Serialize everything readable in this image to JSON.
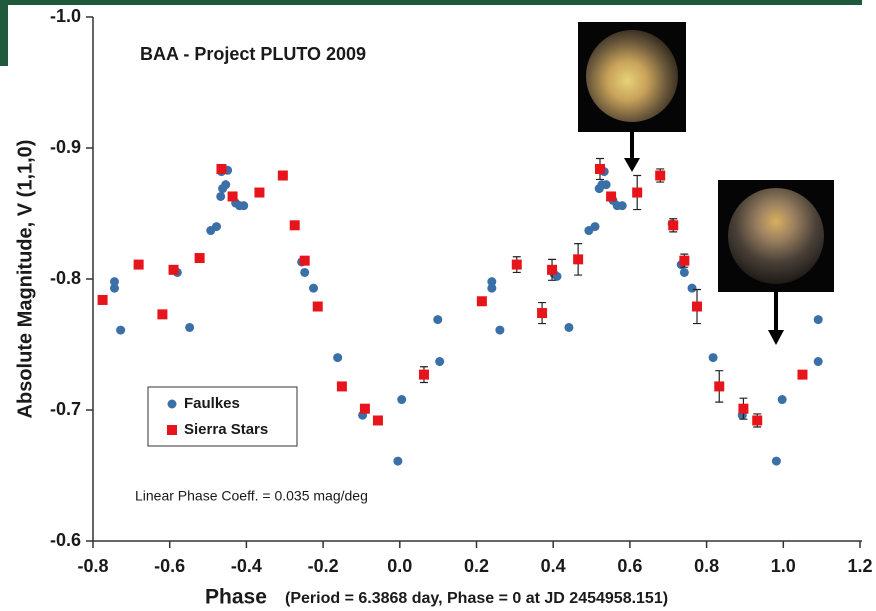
{
  "chart_data": {
    "type": "scatter",
    "title": "BAA  -  Project PLUTO 2009",
    "annotation": "Linear Phase Coeff. = 0.035 mag/deg",
    "x_label": "Phase",
    "x_label_note": "(Period = 6.3868 day, Phase = 0 at JD 2454958.151)",
    "y_label": "Absolute Magnitude, V (1,1,0)",
    "xlim": [
      -0.8,
      1.2
    ],
    "xticks": [
      -0.8,
      -0.6,
      -0.4,
      -0.2,
      {
        "value": 0,
        "label": "0.0"
      },
      0.2,
      0.4,
      0.6,
      0.8,
      {
        "value": 1,
        "label": "1.0"
      },
      1.2
    ],
    "ylim": [
      -0.6,
      -1.0
    ],
    "yticks": [
      {
        "value": -1,
        "label": "-1.0"
      },
      -0.9,
      -0.8,
      -0.7,
      -0.6
    ],
    "legend": "lower left",
    "series": [
      {
        "name": "Faulkes",
        "color": "#3a6fa8",
        "marker": "circle",
        "x": [
          -0.744,
          -0.744,
          -0.728,
          -0.58,
          -0.548,
          -0.493,
          -0.478,
          -0.467,
          -0.462,
          -0.454,
          -0.465,
          -0.449,
          -0.428,
          -0.418,
          -0.407,
          -0.256,
          -0.248,
          -0.225,
          -0.162,
          -0.097,
          0.005,
          -0.005,
          0.099,
          0.104,
          0.24,
          0.24,
          0.261,
          0.402,
          0.41,
          0.441,
          0.493,
          0.509,
          0.52,
          0.527,
          0.533,
          0.538,
          0.556,
          0.567,
          0.58,
          0.71,
          0.734,
          0.742,
          0.762,
          0.817,
          0.893,
          0.997,
          0.982,
          1.091,
          1.091
        ],
        "values": [
          -0.798,
          -0.793,
          -0.761,
          -0.805,
          -0.763,
          -0.837,
          -0.84,
          -0.863,
          -0.869,
          -0.872,
          -0.882,
          -0.883,
          -0.858,
          -0.856,
          -0.856,
          -0.813,
          -0.805,
          -0.793,
          -0.74,
          -0.696,
          -0.708,
          -0.661,
          -0.769,
          -0.737,
          -0.798,
          -0.793,
          -0.761,
          -0.804,
          -0.802,
          -0.763,
          -0.837,
          -0.84,
          -0.869,
          -0.872,
          -0.882,
          -0.872,
          -0.86,
          -0.856,
          -0.856,
          -0.842,
          -0.811,
          -0.805,
          -0.793,
          -0.74,
          -0.696,
          -0.708,
          -0.661,
          -0.769,
          -0.737
        ]
      },
      {
        "name": "Sierra Stars",
        "color": "#e8141b",
        "marker": "square",
        "x": [
          -0.775,
          -0.681,
          -0.619,
          -0.59,
          -0.522,
          -0.465,
          -0.436,
          -0.366,
          -0.305,
          -0.274,
          -0.248,
          -0.214,
          -0.151,
          -0.091,
          -0.057,
          0.063,
          0.214,
          0.305,
          0.371,
          0.397,
          0.465,
          0.522,
          0.551,
          0.619,
          0.679,
          0.713,
          0.742,
          0.775,
          0.833,
          0.896,
          0.932,
          1.05
        ],
        "values": [
          -0.784,
          -0.811,
          -0.773,
          -0.807,
          -0.816,
          -0.884,
          -0.863,
          -0.866,
          -0.879,
          -0.841,
          -0.814,
          -0.779,
          -0.718,
          -0.701,
          -0.692,
          -0.727,
          -0.783,
          -0.811,
          -0.774,
          -0.807,
          -0.815,
          -0.884,
          -0.863,
          -0.866,
          -0.879,
          -0.841,
          -0.814,
          -0.779,
          -0.718,
          -0.701,
          -0.692,
          -0.727
        ],
        "errors": [
          null,
          null,
          null,
          null,
          null,
          null,
          null,
          null,
          null,
          null,
          null,
          null,
          null,
          null,
          null,
          0.006,
          null,
          0.006,
          0.008,
          0.008,
          0.012,
          0.008,
          null,
          0.013,
          0.005,
          0.005,
          0.005,
          0.013,
          0.012,
          0.008,
          0.005,
          null
        ]
      }
    ]
  }
}
